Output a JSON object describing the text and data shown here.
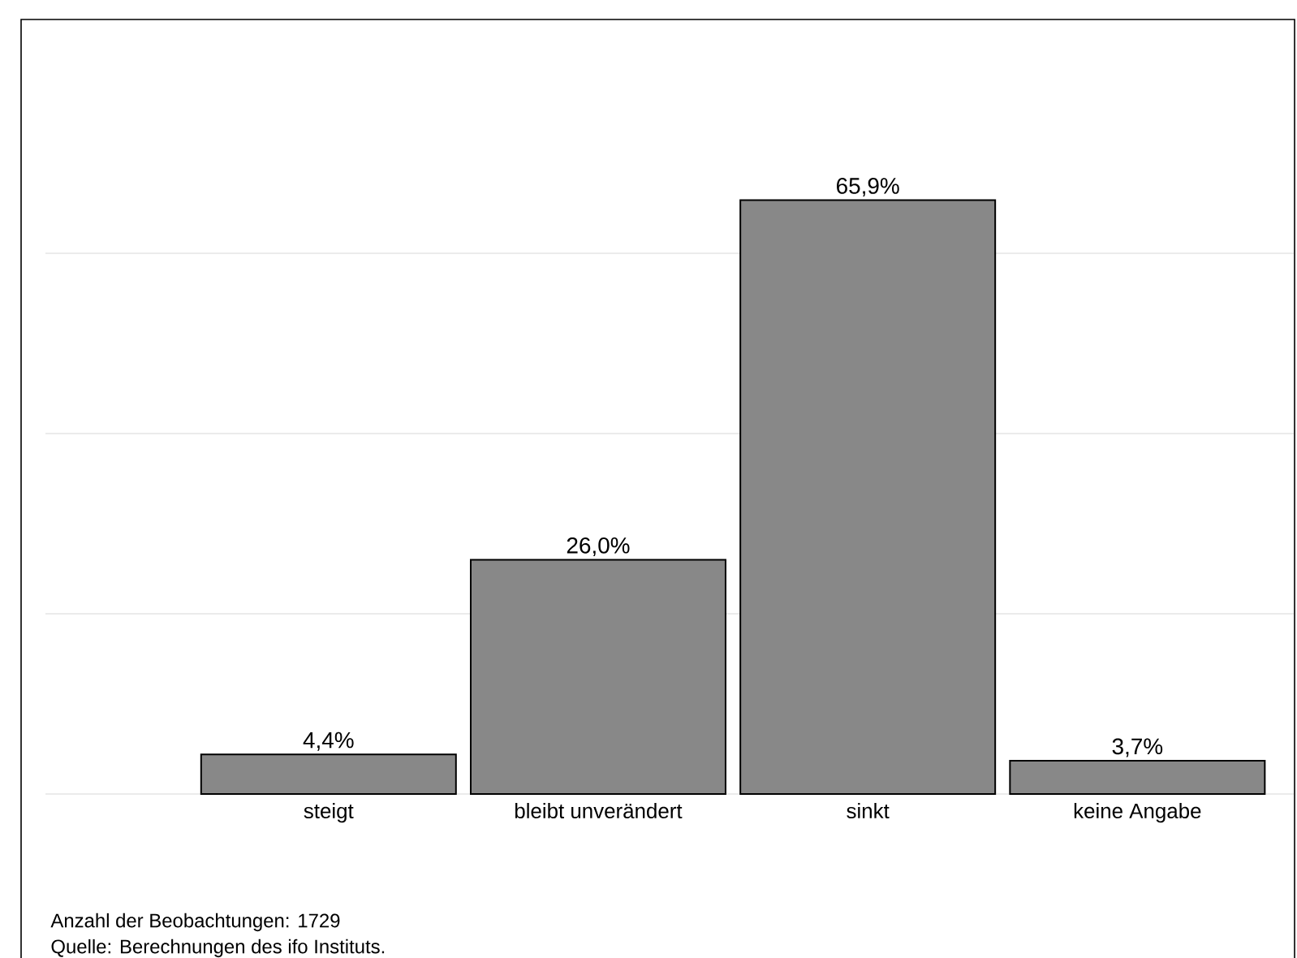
{
  "chart_data": {
    "type": "bar",
    "categories": [
      "steigt",
      "bleibt unverändert",
      "sinkt",
      "keine Angabe"
    ],
    "values": [
      4.4,
      26.0,
      65.9,
      3.7
    ],
    "value_labels": [
      "4,4%",
      "26,0%",
      "65,9%",
      "3,7%"
    ],
    "color": "#888888",
    "yticks": [
      {
        "value": 0,
        "label": null
      },
      {
        "value": 20,
        "label": null
      },
      {
        "value": 40,
        "label": null
      },
      {
        "value": 60,
        "label": null
      }
    ],
    "grid": "y",
    "tick_labels": "x",
    "annotations": [
      "Anzahl der Beobachtungen: 1729",
      "Quelle: Berechnungen des ifo Instituts."
    ]
  }
}
